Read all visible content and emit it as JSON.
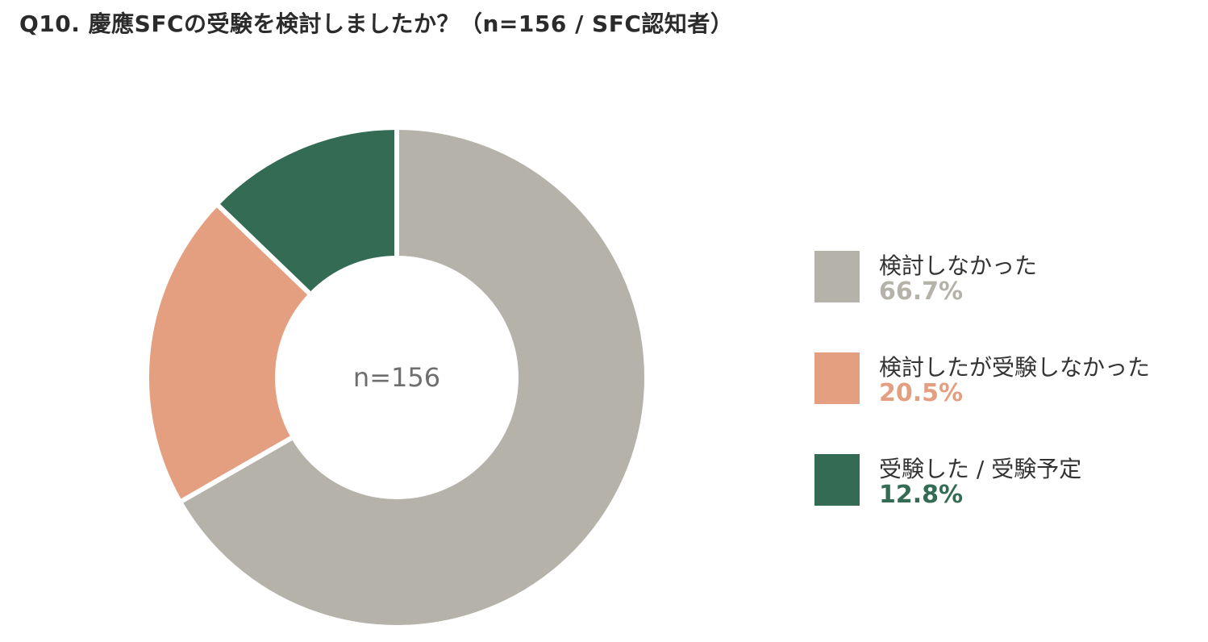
{
  "title": "Q10. 慶應SFCの受験を検討しましたか？（n=156 / SFC認知者）",
  "chart_data": {
    "type": "pie",
    "title": "Q10. 慶應SFCの受験を検討しましたか？（n=156 / SFC認知者）",
    "center_label": "n=156",
    "n": 156,
    "categories": [
      "検討しなかった",
      "検討したが受験しなかった",
      "受験した / 受験予定"
    ],
    "values": [
      66.7,
      20.5,
      12.8
    ],
    "value_labels": [
      "66.7%",
      "20.5%",
      "12.8%"
    ],
    "colors": [
      "#b5b2aa",
      "#e49e80",
      "#336b55"
    ],
    "legend_position": "right",
    "start": "12 o'clock",
    "direction": "clockwise",
    "hole": "donut"
  }
}
